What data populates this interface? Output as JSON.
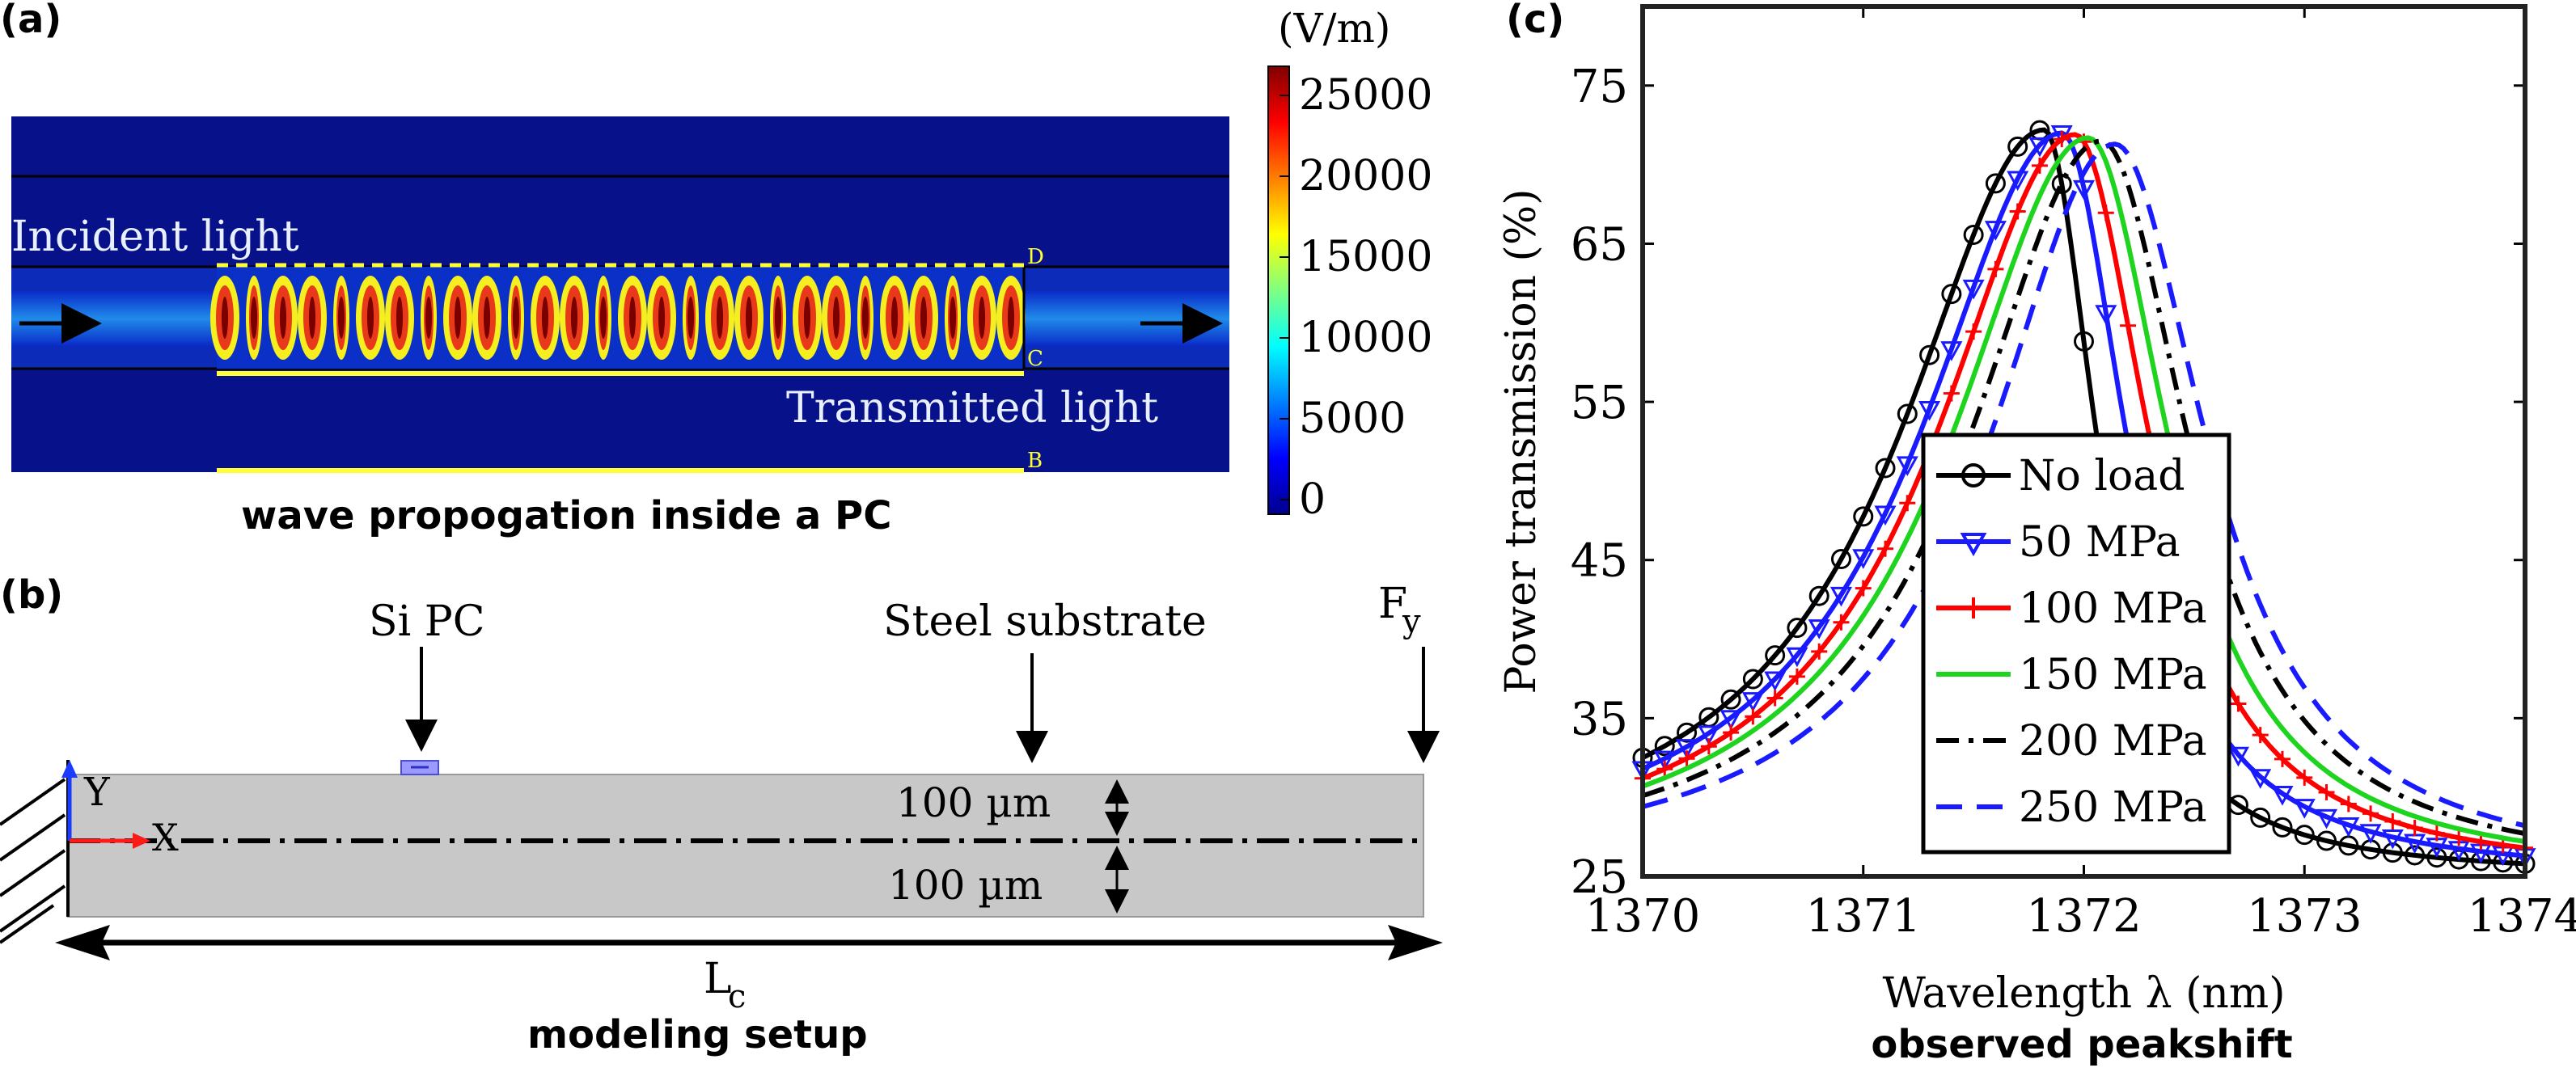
{
  "panel_a": {
    "tag": "(a)",
    "incident_label": "Incident light",
    "transmitted_label": "Transmitted light",
    "marker_d": "D",
    "marker_c": "C",
    "marker_b": "B",
    "colorbar_unit": "(V/m)",
    "colorbar_ticks": [
      "25000",
      "20000",
      "15000",
      "10000",
      "5000",
      "0"
    ],
    "caption": "wave propogation inside a PC"
  },
  "panel_b": {
    "tag": "(b)",
    "si_pc_label": "Si PC",
    "steel_label": "Steel substrate",
    "force_label": "F",
    "force_sub": "y",
    "upper_thickness": "100 µm",
    "lower_thickness": "100 µm",
    "axis_y": "Y",
    "axis_x": "X",
    "length_label": "L",
    "length_sub": "c",
    "caption": "modeling setup"
  },
  "panel_c": {
    "tag": "(c)",
    "caption": "observed peakshift"
  },
  "chart_data": {
    "type": "line",
    "xlabel": "Wavelength λ (nm)",
    "ylabel": "Power transmission (%)",
    "xlim": [
      1370,
      1374
    ],
    "ylim": [
      25,
      80
    ],
    "xticks": [
      1370,
      1371,
      1372,
      1373,
      1374
    ],
    "yticks": [
      25,
      35,
      45,
      55,
      65,
      75
    ],
    "legend_position": "center",
    "series": [
      {
        "name": "No load",
        "color": "#000000",
        "dash": "solid",
        "marker": "circle",
        "peak_x": 1371.82,
        "peak_y": 72.2,
        "start_y": 32.5,
        "end_y": 25.8
      },
      {
        "name": "50 MPa",
        "color": "#1a1aff",
        "dash": "solid",
        "marker": "triangle-down",
        "peak_x": 1371.9,
        "peak_y": 72.0,
        "start_y": 31.8,
        "end_y": 26.3
      },
      {
        "name": "100 MPa",
        "color": "#ff0000",
        "dash": "solid",
        "marker": "plus",
        "peak_x": 1371.96,
        "peak_y": 71.9,
        "start_y": 31.2,
        "end_y": 26.8
      },
      {
        "name": "150 MPa",
        "color": "#1fd41f",
        "dash": "solid",
        "marker": "none",
        "peak_x": 1372.02,
        "peak_y": 71.7,
        "start_y": 30.7,
        "end_y": 27.2
      },
      {
        "name": "200 MPa",
        "color": "#000000",
        "dash": "dashdot",
        "marker": "none",
        "peak_x": 1372.08,
        "peak_y": 71.5,
        "start_y": 30.1,
        "end_y": 27.7
      },
      {
        "name": "250 MPa",
        "color": "#1a1aff",
        "dash": "dashed",
        "marker": "none",
        "peak_x": 1372.14,
        "peak_y": 71.3,
        "start_y": 29.4,
        "end_y": 28.2
      }
    ]
  }
}
